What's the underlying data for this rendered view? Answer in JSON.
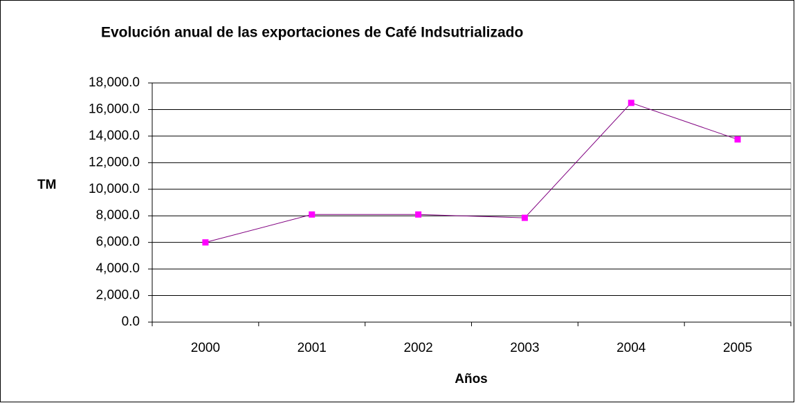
{
  "chart_data": {
    "type": "line",
    "title": "Evolución anual de las exportaciones de Café Indsutrializado",
    "y_label": "TM",
    "x_label": "Años",
    "categories": [
      "2000",
      "2001",
      "2002",
      "2003",
      "2004",
      "2005"
    ],
    "values": [
      6000,
      8100,
      8100,
      7850,
      16500,
      13750
    ],
    "color": "#800080",
    "marker_color": "#ff00ff",
    "ylim": [
      0,
      18000
    ],
    "yticks": [
      {
        "value": 0,
        "label": "0.0"
      },
      {
        "value": 2000,
        "label": "2,000.0"
      },
      {
        "value": 4000,
        "label": "4,000.0"
      },
      {
        "value": 6000,
        "label": "6,000.0"
      },
      {
        "value": 8000,
        "label": "8,000.0"
      },
      {
        "value": 10000,
        "label": "10,000.0"
      },
      {
        "value": 12000,
        "label": "12,000.0"
      },
      {
        "value": 14000,
        "label": "14,000.0"
      },
      {
        "value": 16000,
        "label": "16,000.0"
      },
      {
        "value": 18000,
        "label": "18,000.0"
      }
    ],
    "grid": true
  }
}
